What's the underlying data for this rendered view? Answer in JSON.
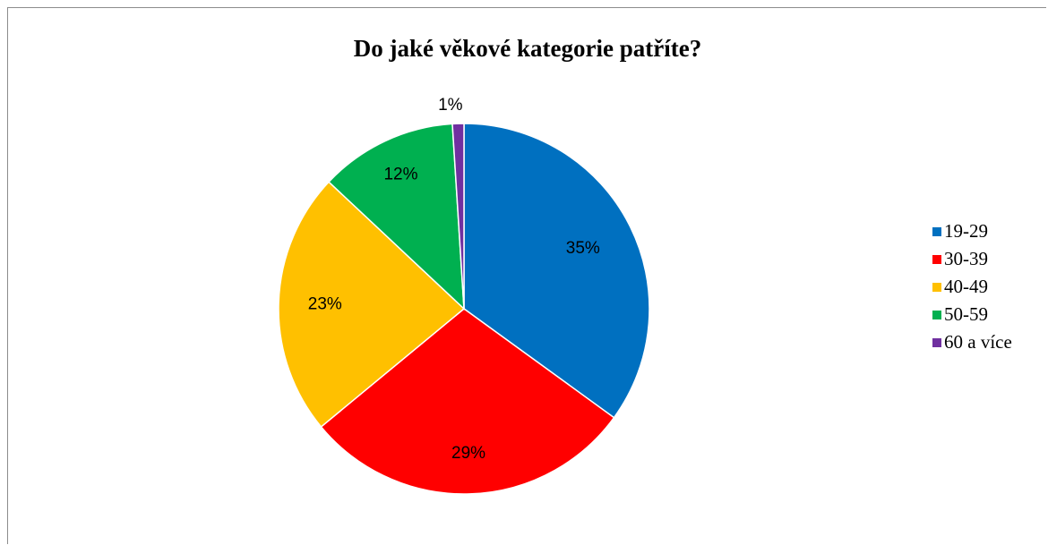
{
  "chart_data": {
    "type": "pie",
    "title": "Do jaké věkové kategorie patříte?",
    "categories": [
      "19-29",
      "30-39",
      "40-49",
      "50-59",
      "60 a více"
    ],
    "values": [
      35,
      29,
      23,
      12,
      1
    ],
    "data_labels": [
      "35%",
      "29%",
      "23%",
      "12%",
      "1%"
    ],
    "colors": [
      "#0070c0",
      "#ff0000",
      "#ffc000",
      "#00b050",
      "#7030a0"
    ],
    "start_angle": "12 o'clock",
    "direction": "clockwise",
    "legend": "right"
  }
}
